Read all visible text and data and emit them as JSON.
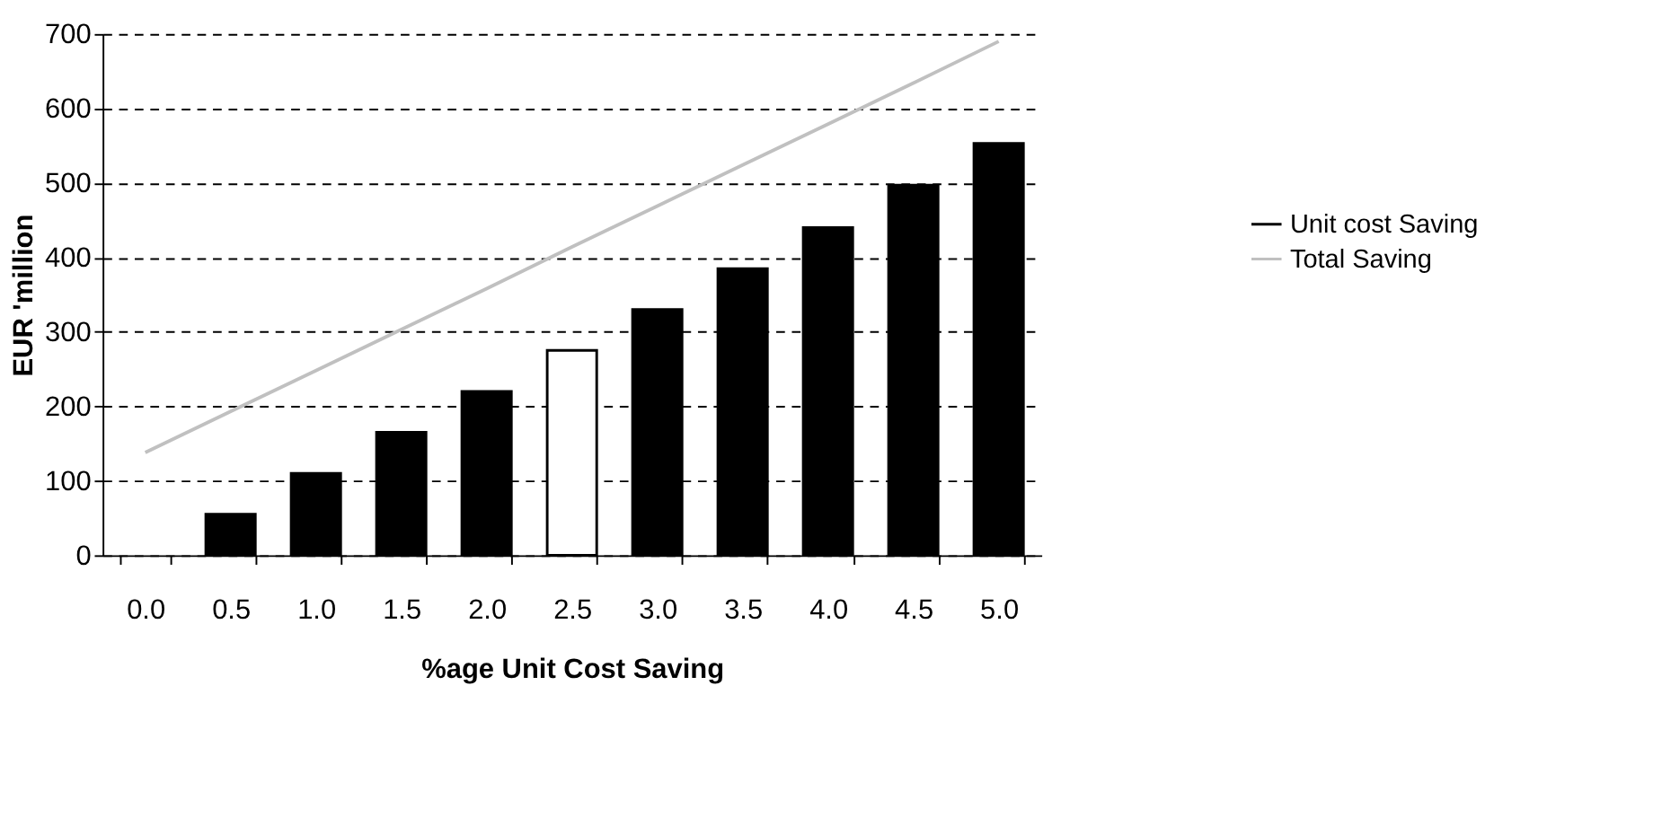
{
  "chart_data": {
    "type": "bar",
    "xlabel": "%age Unit Cost Saving",
    "ylabel": "EUR 'million",
    "categories": [
      "0.0",
      "0.5",
      "1.0",
      "1.5",
      "2.0",
      "2.5",
      "3.0",
      "3.5",
      "4.0",
      "4.5",
      "5.0"
    ],
    "series": [
      {
        "name": "Unit cost Saving",
        "color": "#000000",
        "colors": [
          "#000000",
          "#000000",
          "#000000",
          "#000000",
          "#000000",
          "#ffffff",
          "#000000",
          "#000000",
          "#000000",
          "#000000",
          "#000000"
        ],
        "values": [
          null,
          55,
          110,
          165,
          220,
          275,
          330,
          385,
          440,
          497,
          553
        ]
      },
      {
        "name": "Total Saving",
        "type": "line",
        "color": "#c0c0c0",
        "values": [
          138,
          193,
          248,
          303,
          358,
          414,
          469,
          524,
          579,
          634,
          690
        ]
      }
    ],
    "ylim": [
      0,
      700
    ],
    "yticks": [
      0,
      100,
      200,
      300,
      400,
      500,
      600,
      700
    ],
    "grid": "y",
    "legend": "right",
    "line_style": "solid",
    "marker": "none"
  }
}
